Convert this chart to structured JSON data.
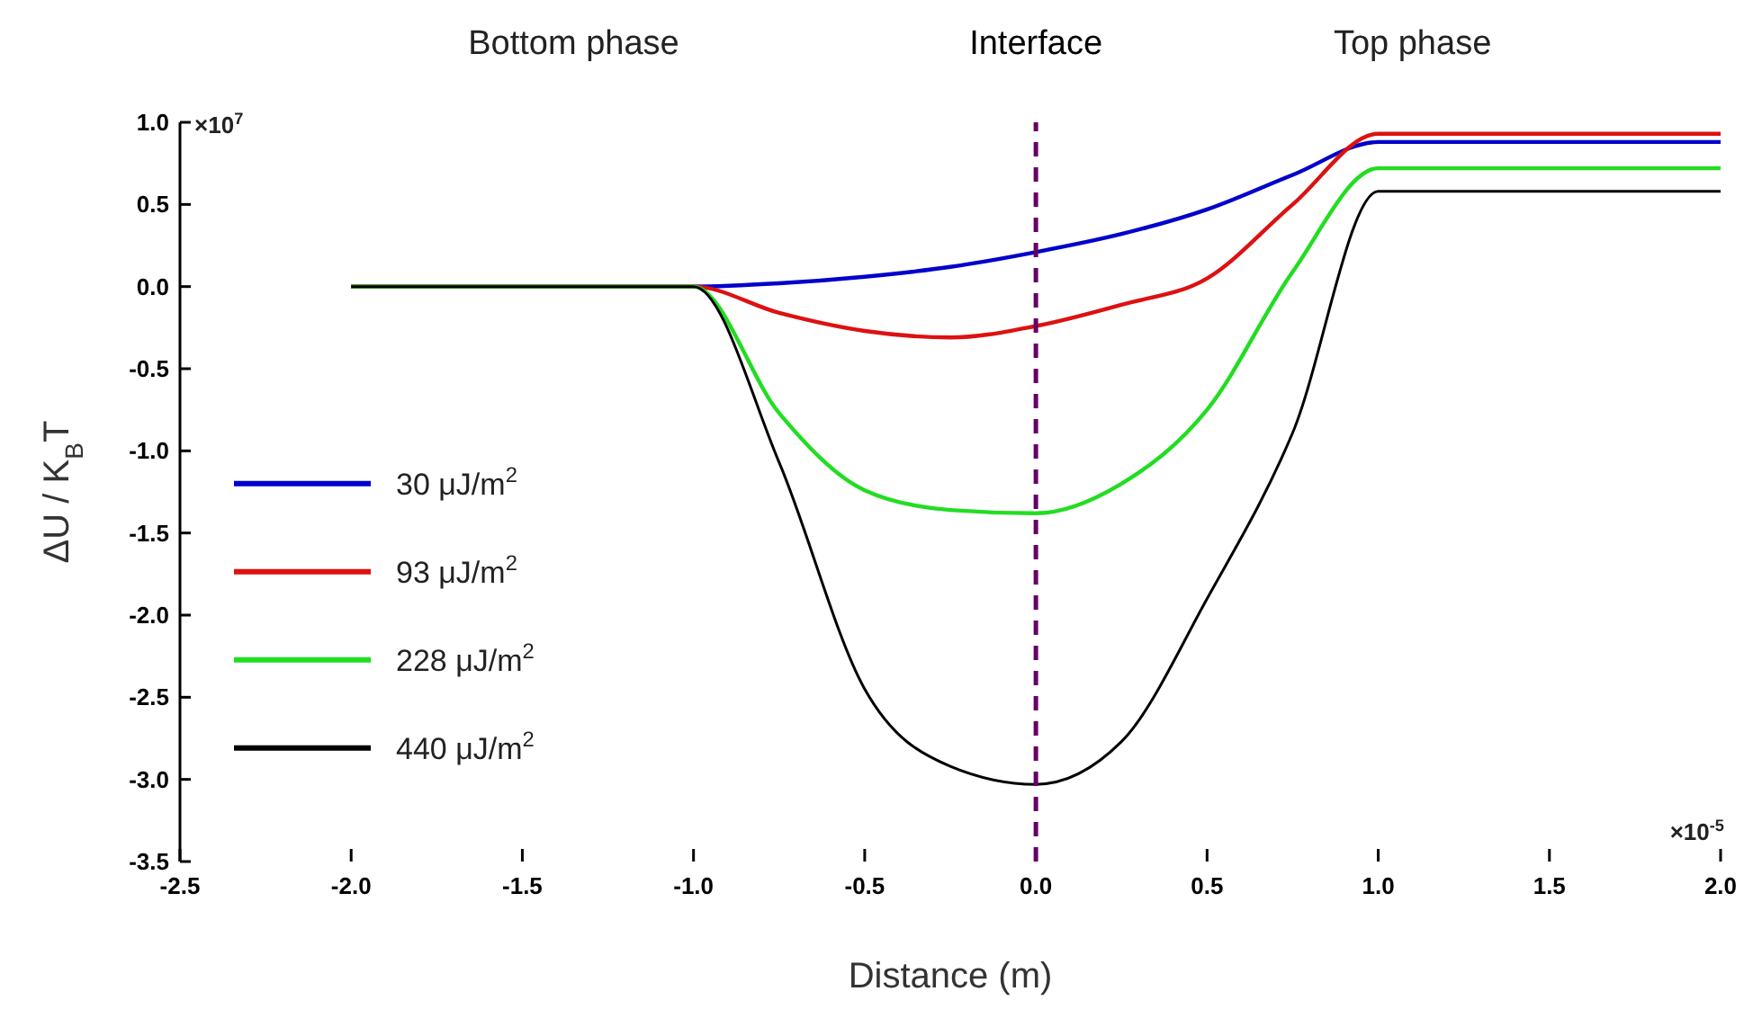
{
  "chart_data": {
    "type": "line",
    "xlabel": "Distance (m)",
    "ylabel": "ΔU / K$_{B}$T",
    "annotations": [
      "Bottom phase",
      "Top phase",
      "×10$^{7}$",
      "×10$^{-5}$"
    ],
    "xlim": [
      -2.5,
      2.0
    ],
    "ylim": [
      -3.5,
      1.0
    ],
    "xticks": [
      -2.5,
      {
        "value": -2,
        "label": "-2.0"
      },
      -1.5,
      {
        "value": -1,
        "label": "-1.0"
      },
      -0.5,
      {
        "value": 0,
        "label": "0.0"
      },
      0.5,
      {
        "value": 1,
        "label": "1.0"
      },
      1.5,
      {
        "value": 2,
        "label": "2.0"
      }
    ],
    "yticks": [
      {
        "value": 1,
        "label": "1.0"
      },
      0.5,
      {
        "value": 0,
        "label": "0.0"
      },
      -0.5,
      {
        "value": -1,
        "label": "-1.0"
      },
      -1.5,
      {
        "value": -2,
        "label": "-2.0"
      },
      -2.5,
      {
        "value": -3,
        "label": "-3.0"
      },
      -3.5
    ],
    "x": [
      -2,
      -1,
      -0.75,
      -0.5,
      -0.25,
      0,
      0.25,
      0.5,
      0.75,
      1,
      2
    ],
    "series": [
      {
        "name": "30 μJ/m$^{2}$",
        "color": "#0000cc",
        "values": [
          0,
          0,
          0.02,
          0.06,
          0.12,
          0.21,
          0.32,
          0.47,
          0.68,
          0.88,
          0.88
        ]
      },
      {
        "name": "93 μJ/m$^{2}$",
        "color": "#dd1111",
        "values": [
          0,
          0,
          -0.16,
          -0.27,
          -0.31,
          -0.24,
          -0.11,
          0.05,
          0.5,
          0.93,
          0.93
        ]
      },
      {
        "name": "228 μJ/m$^{2}$",
        "color": "#22dd22",
        "values": [
          0,
          0,
          -0.77,
          -1.24,
          -1.36,
          -1.38,
          -1.2,
          -0.75,
          0.09,
          0.72,
          0.72
        ]
      },
      {
        "name": "440 μJ/m$^{2}$",
        "color": "#000000",
        "values": [
          0,
          0,
          -1.07,
          -2.45,
          -2.92,
          -3.03,
          -2.77,
          -1.9,
          -0.89,
          0.58,
          0.58
        ]
      }
    ],
    "ref_lines": [
      {
        "axis": "x",
        "value": 0,
        "label": "Interface",
        "color": "#660066",
        "line_style": "dashed"
      }
    ],
    "legend": "left",
    "grid": false,
    "line_style": "solid"
  }
}
